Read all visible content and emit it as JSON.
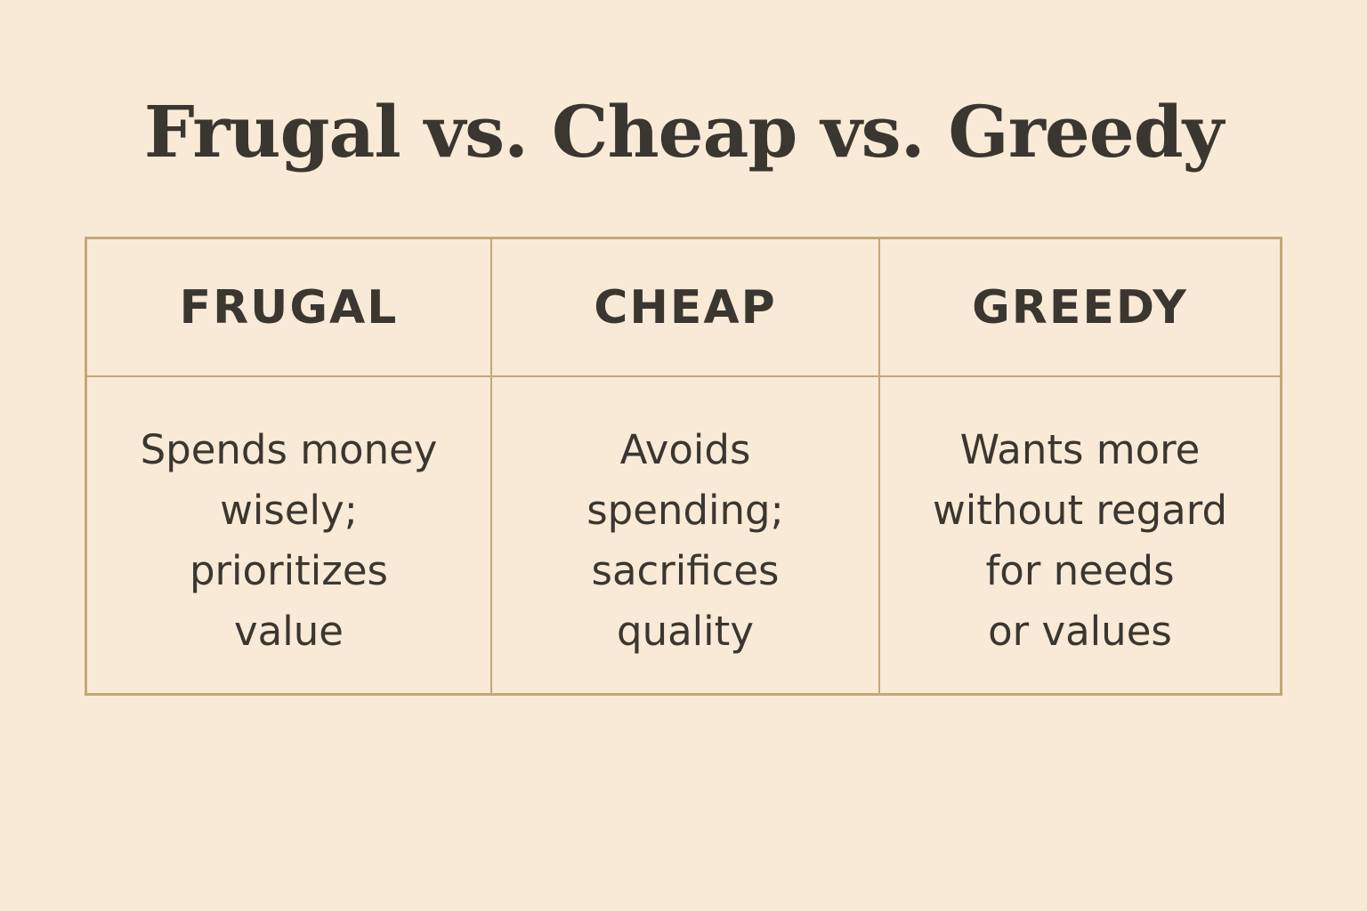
{
  "title": "Frugal vs. Cheap vs. Greedy",
  "colors": {
    "background": "#f8ead6",
    "border": "#c2a779",
    "text": "#3b3630"
  },
  "columns": [
    {
      "header": "FRUGAL",
      "description": "Spends money wisely; prioritizes value",
      "lines": [
        "Spends money",
        "wisely;",
        "prioritizes",
        "value"
      ]
    },
    {
      "header": "CHEAP",
      "description": "Avoids spending; sacrifices quality",
      "lines": [
        "Avoids",
        "spending;",
        "sacrifices",
        "quality"
      ]
    },
    {
      "header": "GREEDY",
      "description": "Wants more without regard for needs or values",
      "lines": [
        "Wants more",
        "without regard",
        "for needs",
        "or values"
      ]
    }
  ]
}
